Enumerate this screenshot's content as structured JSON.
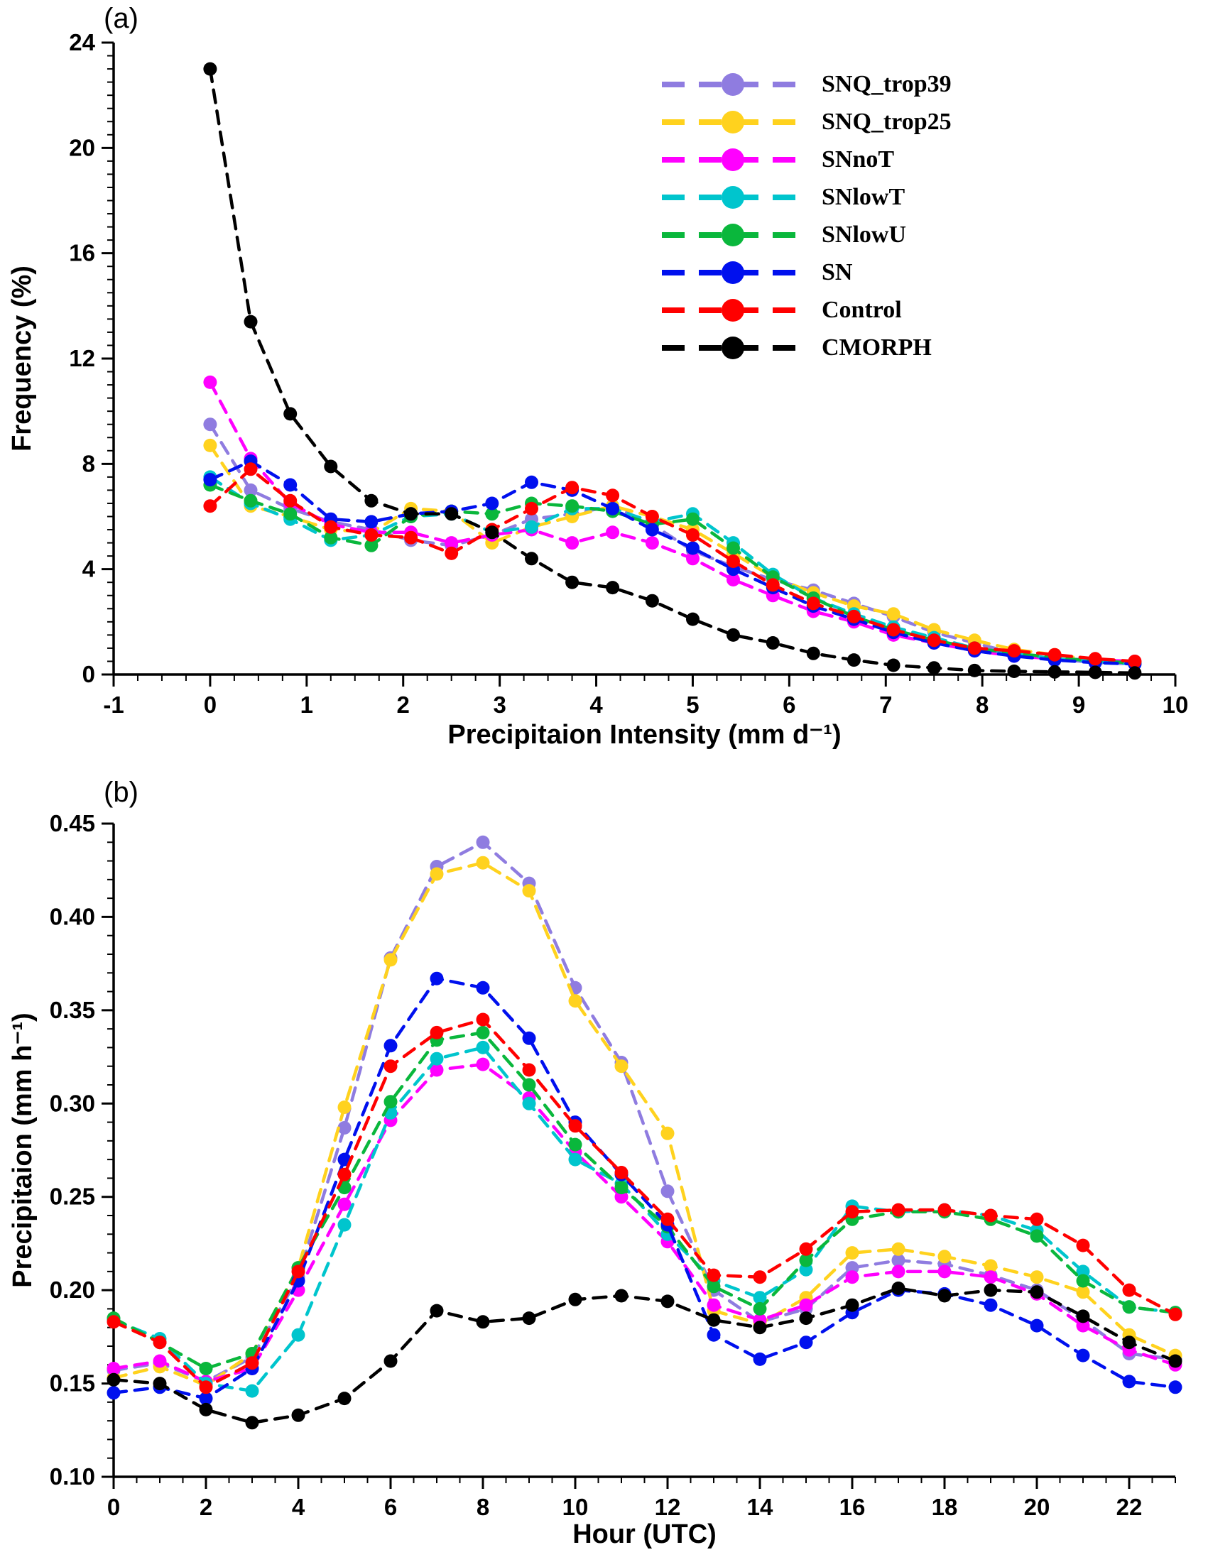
{
  "legend": {
    "items": [
      {
        "label": "SNQ_trop39",
        "color": "#8f7ce0"
      },
      {
        "label": "SNQ_trop25",
        "color": "#ffd21e"
      },
      {
        "label": "SNnoT",
        "color": "#ff00ff"
      },
      {
        "label": "SNlowT",
        "color": "#00c5cd"
      },
      {
        "label": "SNlowU",
        "color": "#0ab73c"
      },
      {
        "label": "SN",
        "color": "#0010ee"
      },
      {
        "label": "Control",
        "color": "#ff0000"
      },
      {
        "label": "CMORPH",
        "color": "#000000"
      }
    ]
  },
  "chart_data": [
    {
      "id": "a",
      "type": "line",
      "panel_label": "(a)",
      "xlabel": "Precipitaion Intensity (mm d⁻¹)",
      "ylabel": "Frequency (%)",
      "xlim": [
        -1,
        10
      ],
      "ylim": [
        0,
        24
      ],
      "grid": false,
      "legend_position": "upper right inside plot",
      "x_ticks": {
        "values": [
          -1,
          0,
          1,
          2,
          3,
          4,
          5,
          6,
          7,
          8,
          9,
          10
        ],
        "labels": [
          "-1",
          "0",
          "1",
          "2",
          "3",
          "4",
          "5",
          "6",
          "7",
          "8",
          "9",
          "10"
        ],
        "minor_step": 0.25
      },
      "y_ticks": {
        "values": [
          0,
          4,
          8,
          12,
          16,
          20,
          24
        ],
        "labels": [
          "0",
          "4",
          "8",
          "12",
          "16",
          "20",
          "24"
        ],
        "minor_step": 0.5
      },
      "x": [
        0,
        0.42,
        0.83,
        1.25,
        1.67,
        2.08,
        2.5,
        2.92,
        3.33,
        3.75,
        4.17,
        4.58,
        5.0,
        5.42,
        5.83,
        6.25,
        6.67,
        7.08,
        7.5,
        7.92,
        8.33,
        8.75,
        9.17,
        9.58
      ],
      "series": [
        {
          "name": "SNQ_trop39",
          "color": "#8f7ce0",
          "values": [
            9.5,
            7.0,
            6.3,
            5.8,
            5.5,
            5.1,
            4.9,
            5.3,
            5.9,
            6.1,
            6.4,
            5.7,
            4.7,
            4.1,
            3.6,
            3.2,
            2.7,
            2.2,
            1.6,
            1.2,
            0.8,
            0.6,
            0.45,
            0.4
          ]
        },
        {
          "name": "SNQ_trop25",
          "color": "#ffd21e",
          "values": [
            8.7,
            6.4,
            6.0,
            5.5,
            5.4,
            6.3,
            6.2,
            5.0,
            5.6,
            6.0,
            6.4,
            6.0,
            5.5,
            4.6,
            3.7,
            3.1,
            2.6,
            2.3,
            1.7,
            1.3,
            0.95,
            0.75,
            0.55,
            0.5
          ]
        },
        {
          "name": "SNnoT",
          "color": "#ff00ff",
          "values": [
            11.1,
            8.2,
            6.5,
            5.7,
            5.4,
            5.4,
            5.0,
            5.3,
            5.5,
            5.0,
            5.4,
            5.0,
            4.4,
            3.6,
            3.0,
            2.4,
            2.0,
            1.5,
            1.2,
            0.9,
            0.7,
            0.6,
            0.55,
            0.5
          ]
        },
        {
          "name": "SNlowT",
          "color": "#00c5cd",
          "values": [
            7.5,
            6.5,
            5.9,
            5.1,
            5.3,
            6.0,
            6.1,
            5.4,
            5.6,
            6.3,
            6.3,
            5.8,
            6.1,
            5.0,
            3.8,
            2.9,
            2.3,
            1.8,
            1.4,
            1.0,
            0.8,
            0.6,
            0.5,
            0.4
          ]
        },
        {
          "name": "SNlowU",
          "color": "#0ab73c",
          "values": [
            7.2,
            6.6,
            6.1,
            5.2,
            4.9,
            6.0,
            6.2,
            6.1,
            6.5,
            6.4,
            6.2,
            5.7,
            5.9,
            4.8,
            3.7,
            2.9,
            2.2,
            1.7,
            1.3,
            1.0,
            0.8,
            0.65,
            0.5,
            0.45
          ]
        },
        {
          "name": "SN",
          "color": "#0010ee",
          "values": [
            7.4,
            8.1,
            7.2,
            5.9,
            5.8,
            6.1,
            6.2,
            6.5,
            7.3,
            7.0,
            6.3,
            5.5,
            4.8,
            4.0,
            3.3,
            2.6,
            2.1,
            1.6,
            1.2,
            0.9,
            0.7,
            0.55,
            0.45,
            0.4
          ]
        },
        {
          "name": "Control",
          "color": "#ff0000",
          "values": [
            6.4,
            7.8,
            6.6,
            5.6,
            5.3,
            5.2,
            4.6,
            5.5,
            6.3,
            7.1,
            6.8,
            6.0,
            5.3,
            4.3,
            3.4,
            2.7,
            2.2,
            1.7,
            1.3,
            1.0,
            0.9,
            0.75,
            0.6,
            0.5
          ]
        },
        {
          "name": "CMORPH",
          "color": "#000000",
          "values": [
            23.0,
            13.4,
            9.9,
            7.9,
            6.6,
            6.1,
            6.1,
            5.4,
            4.4,
            3.5,
            3.3,
            2.8,
            2.1,
            1.5,
            1.2,
            0.8,
            0.55,
            0.35,
            0.25,
            0.15,
            0.12,
            0.1,
            0.08,
            0.06
          ]
        }
      ]
    },
    {
      "id": "b",
      "type": "line",
      "panel_label": "(b)",
      "xlabel": "Hour (UTC)",
      "ylabel": "Precipitaion (mm h⁻¹)",
      "xlim": [
        0,
        23
      ],
      "ylim": [
        0.1,
        0.45
      ],
      "grid": false,
      "x_ticks": {
        "values": [
          0,
          2,
          4,
          6,
          8,
          10,
          12,
          14,
          16,
          18,
          20,
          22
        ],
        "labels": [
          "0",
          "2",
          "4",
          "6",
          "8",
          "10",
          "12",
          "14",
          "16",
          "18",
          "20",
          "22"
        ],
        "minor_step": 0.5
      },
      "y_ticks": {
        "values": [
          0.1,
          0.15,
          0.2,
          0.25,
          0.3,
          0.35,
          0.4,
          0.45
        ],
        "labels": [
          "0.10",
          "0.15",
          "0.20",
          "0.25",
          "0.30",
          "0.35",
          "0.40",
          "0.45"
        ],
        "minor_step": 0.01
      },
      "x": [
        0,
        1,
        2,
        3,
        4,
        5,
        6,
        7,
        8,
        9,
        10,
        11,
        12,
        13,
        14,
        15,
        16,
        17,
        18,
        19,
        20,
        21,
        22,
        23
      ],
      "series": [
        {
          "name": "SNQ_trop39",
          "color": "#8f7ce0",
          "values": [
            0.157,
            0.161,
            0.151,
            0.164,
            0.207,
            0.287,
            0.378,
            0.427,
            0.44,
            0.418,
            0.362,
            0.322,
            0.253,
            0.2,
            0.183,
            0.19,
            0.212,
            0.216,
            0.214,
            0.208,
            0.2,
            0.184,
            0.166,
            0.163
          ]
        },
        {
          "name": "SNQ_trop25",
          "color": "#ffd21e",
          "values": [
            0.153,
            0.159,
            0.149,
            0.166,
            0.212,
            0.298,
            0.377,
            0.423,
            0.429,
            0.414,
            0.355,
            0.32,
            0.284,
            0.189,
            0.182,
            0.196,
            0.22,
            0.222,
            0.218,
            0.213,
            0.207,
            0.199,
            0.176,
            0.165
          ]
        },
        {
          "name": "SNnoT",
          "color": "#ff00ff",
          "values": [
            0.158,
            0.162,
            0.151,
            0.158,
            0.2,
            0.246,
            0.291,
            0.318,
            0.321,
            0.303,
            0.274,
            0.25,
            0.226,
            0.192,
            0.184,
            0.192,
            0.207,
            0.21,
            0.21,
            0.207,
            0.198,
            0.181,
            0.168,
            0.16
          ]
        },
        {
          "name": "SNlowT",
          "color": "#00c5cd",
          "values": [
            0.184,
            0.174,
            0.15,
            0.146,
            0.176,
            0.235,
            0.295,
            0.324,
            0.33,
            0.3,
            0.27,
            0.257,
            0.23,
            0.205,
            0.196,
            0.211,
            0.245,
            0.242,
            0.243,
            0.24,
            0.232,
            0.21,
            0.191,
            0.188
          ]
        },
        {
          "name": "SNlowU",
          "color": "#0ab73c",
          "values": [
            0.185,
            0.172,
            0.158,
            0.166,
            0.212,
            0.255,
            0.301,
            0.334,
            0.338,
            0.31,
            0.278,
            0.255,
            0.234,
            0.202,
            0.19,
            0.216,
            0.238,
            0.242,
            0.242,
            0.238,
            0.229,
            0.205,
            0.191,
            0.188
          ]
        },
        {
          "name": "SN",
          "color": "#0010ee",
          "values": [
            0.145,
            0.148,
            0.142,
            0.158,
            0.205,
            0.27,
            0.331,
            0.367,
            0.362,
            0.335,
            0.29,
            0.262,
            0.235,
            0.176,
            0.163,
            0.172,
            0.188,
            0.2,
            0.198,
            0.192,
            0.181,
            0.165,
            0.151,
            0.148
          ]
        },
        {
          "name": "Control",
          "color": "#ff0000",
          "values": [
            0.183,
            0.172,
            0.148,
            0.161,
            0.21,
            0.262,
            0.32,
            0.338,
            0.345,
            0.318,
            0.288,
            0.263,
            0.238,
            0.208,
            0.207,
            0.222,
            0.242,
            0.243,
            0.243,
            0.24,
            0.238,
            0.224,
            0.2,
            0.187
          ]
        },
        {
          "name": "CMORPH",
          "color": "#000000",
          "values": [
            0.152,
            0.15,
            0.136,
            0.129,
            0.133,
            0.142,
            0.162,
            0.189,
            0.183,
            0.185,
            0.195,
            0.197,
            0.194,
            0.184,
            0.18,
            0.185,
            0.192,
            0.201,
            0.197,
            0.2,
            0.199,
            0.186,
            0.172,
            0.162
          ]
        }
      ]
    }
  ]
}
